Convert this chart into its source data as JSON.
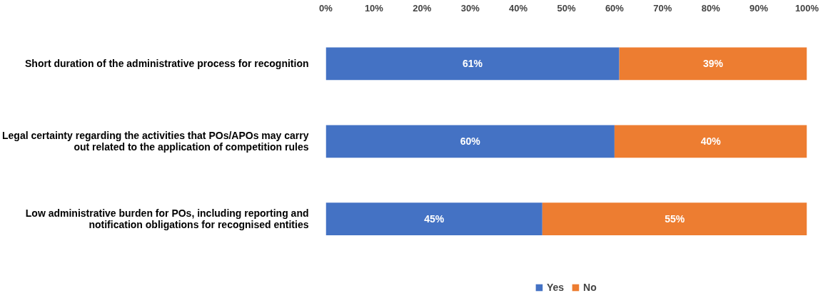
{
  "chart_data": {
    "type": "bar",
    "orientation": "horizontal",
    "stacked": true,
    "categories": [
      "Short duration of the administrative process for recognition",
      "Legal certainty regarding the activities that POs/APOs may carry out related to the application of competition rules",
      "Low administrative burden for POs, including reporting and notification obligations for recognised entities"
    ],
    "series": [
      {
        "name": "Yes",
        "color": "#4472c4",
        "values": [
          61,
          60,
          45
        ],
        "value_labels": [
          "61%",
          "60%",
          "45%"
        ]
      },
      {
        "name": "No",
        "color": "#ed7d31",
        "values": [
          39,
          40,
          55
        ],
        "value_labels": [
          "39%",
          "40%",
          "55%"
        ]
      }
    ],
    "xlim": [
      0,
      100
    ],
    "xticks": [
      {
        "value": 0,
        "label": "0%"
      },
      {
        "value": 10,
        "label": "10%"
      },
      {
        "value": 20,
        "label": "20%"
      },
      {
        "value": 30,
        "label": "30%"
      },
      {
        "value": 40,
        "label": "40%"
      },
      {
        "value": 50,
        "label": "50%"
      },
      {
        "value": 60,
        "label": "60%"
      },
      {
        "value": 70,
        "label": "70%"
      },
      {
        "value": 80,
        "label": "80%"
      },
      {
        "value": 90,
        "label": "90%"
      },
      {
        "value": 100,
        "label": "100%"
      }
    ],
    "grid": false,
    "legend": "bottom"
  }
}
